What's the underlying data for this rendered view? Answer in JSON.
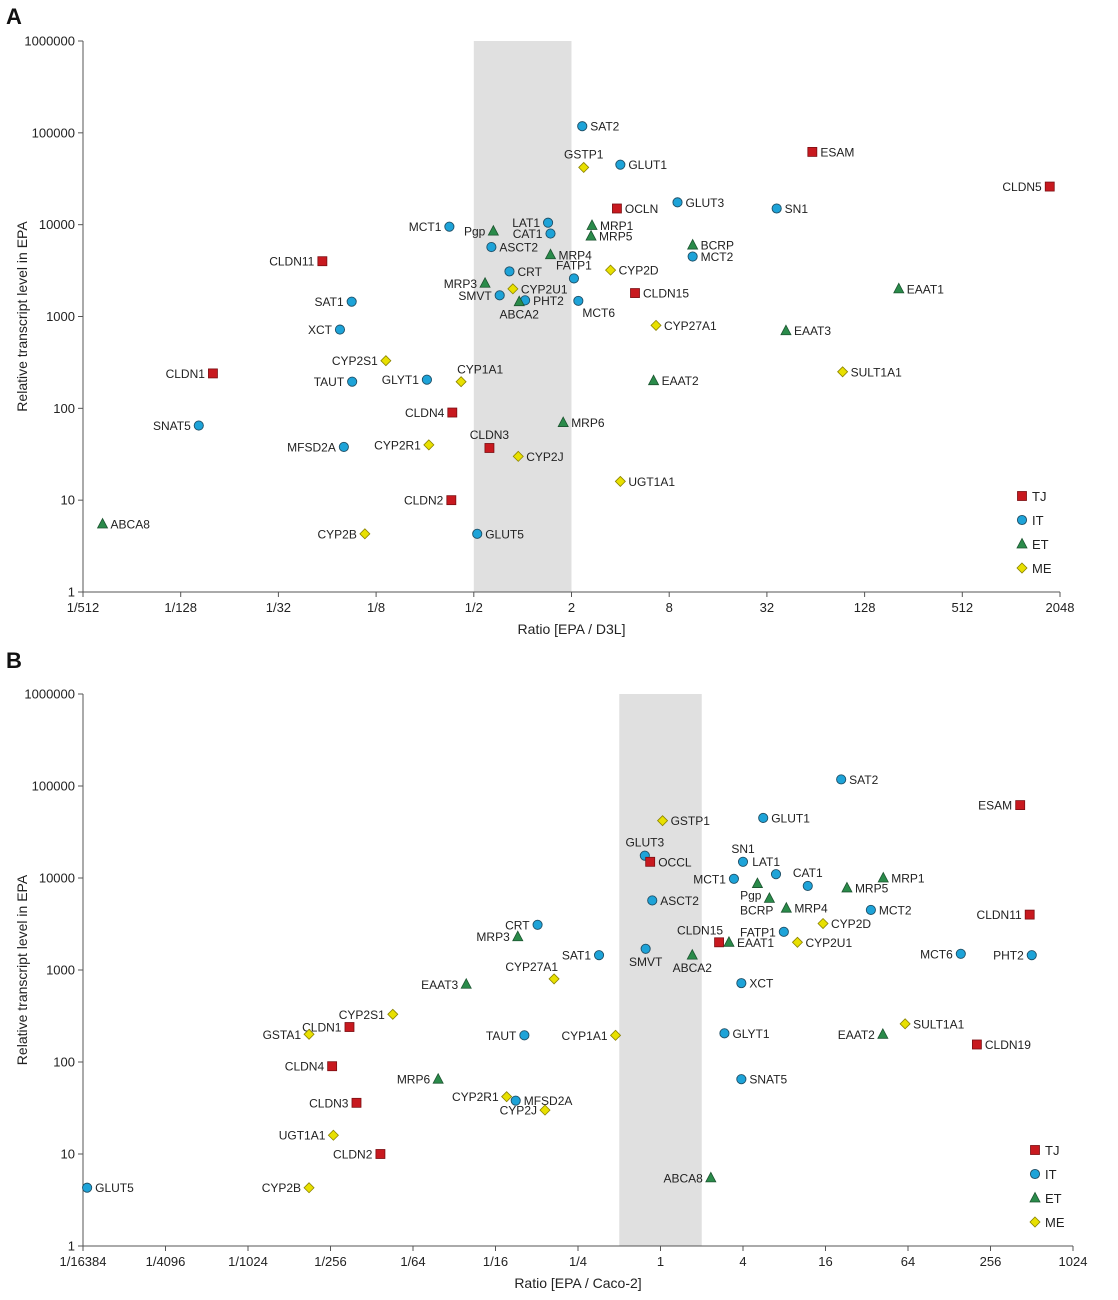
{
  "colors": {
    "TJ": "#c8191f",
    "IT": "#1da3d8",
    "ET": "#2a8b4a",
    "ME": "#e8e000",
    "band": "#e0e0e0"
  },
  "chart_data": [
    {
      "panel": "A",
      "type": "scatter",
      "xscale": "log2",
      "yscale": "log10",
      "xlabel": "Ratio [EPA / D3L]",
      "ylabel": "Relative transcript level in EPA",
      "xlim_log2": [
        -9,
        11
      ],
      "ylim": [
        1,
        1000000
      ],
      "xticks": [
        {
          "v": -9,
          "label": "1/512"
        },
        {
          "v": -7,
          "label": "1/128"
        },
        {
          "v": -5,
          "label": "1/32"
        },
        {
          "v": -3,
          "label": "1/8"
        },
        {
          "v": -1,
          "label": "1/2"
        },
        {
          "v": 1,
          "label": "2"
        },
        {
          "v": 3,
          "label": "8"
        },
        {
          "v": 5,
          "label": "32"
        },
        {
          "v": 7,
          "label": "128"
        },
        {
          "v": 9,
          "label": "512"
        },
        {
          "v": 11,
          "label": "2048"
        }
      ],
      "yticks": [
        {
          "v": 1,
          "label": "1"
        },
        {
          "v": 10,
          "label": "10"
        },
        {
          "v": 100,
          "label": "100"
        },
        {
          "v": 1000,
          "label": "1000"
        },
        {
          "v": 10000,
          "label": "10000"
        },
        {
          "v": 100000,
          "label": "100000"
        },
        {
          "v": 1000000,
          "label": "1000000"
        }
      ],
      "band_log2": [
        -1,
        1
      ],
      "legend": [
        {
          "cat": "TJ",
          "label": "TJ"
        },
        {
          "cat": "IT",
          "label": "IT"
        },
        {
          "cat": "ET",
          "label": "ET"
        },
        {
          "cat": "ME",
          "label": "ME"
        }
      ],
      "points": [
        {
          "label": "SAT2",
          "cat": "IT",
          "x": 1.22,
          "y": 118000,
          "pos": "right"
        },
        {
          "label": "GSTP1",
          "cat": "ME",
          "x": 1.25,
          "y": 42000,
          "pos": "above"
        },
        {
          "label": "GLUT1",
          "cat": "IT",
          "x": 2.0,
          "y": 45000,
          "pos": "right"
        },
        {
          "label": "ESAM",
          "cat": "TJ",
          "x": 5.93,
          "y": 62000,
          "pos": "right"
        },
        {
          "label": "CLDN5",
          "cat": "TJ",
          "x": 10.79,
          "y": 26000,
          "pos": "left"
        },
        {
          "label": "GLUT3",
          "cat": "IT",
          "x": 3.17,
          "y": 17500,
          "pos": "right"
        },
        {
          "label": "OCLN",
          "cat": "TJ",
          "x": 1.93,
          "y": 15000,
          "pos": "right"
        },
        {
          "label": "SN1",
          "cat": "IT",
          "x": 5.2,
          "y": 15000,
          "pos": "right"
        },
        {
          "label": "MCT1",
          "cat": "IT",
          "x": -1.5,
          "y": 9500,
          "pos": "left"
        },
        {
          "label": "Pgp",
          "cat": "ET",
          "x": -0.6,
          "y": 8500,
          "pos": "left"
        },
        {
          "label": "LAT1",
          "cat": "IT",
          "x": 0.52,
          "y": 10500,
          "pos": "left"
        },
        {
          "label": "CAT1",
          "cat": "IT",
          "x": 0.57,
          "y": 8000,
          "pos": "left"
        },
        {
          "label": "MRP1",
          "cat": "ET",
          "x": 1.42,
          "y": 9800,
          "pos": "right"
        },
        {
          "label": "MRP5",
          "cat": "ET",
          "x": 1.4,
          "y": 7500,
          "pos": "right"
        },
        {
          "label": "ASCT2",
          "cat": "IT",
          "x": -0.64,
          "y": 5700,
          "pos": "right"
        },
        {
          "label": "BCRP",
          "cat": "ET",
          "x": 3.48,
          "y": 6000,
          "pos": "right"
        },
        {
          "label": "MCT2",
          "cat": "IT",
          "x": 3.48,
          "y": 4500,
          "pos": "right"
        },
        {
          "label": "MRP4",
          "cat": "ET",
          "x": 0.57,
          "y": 4700,
          "pos": "right"
        },
        {
          "label": "CLDN11",
          "cat": "TJ",
          "x": -4.1,
          "y": 4000,
          "pos": "left"
        },
        {
          "label": "CRT",
          "cat": "IT",
          "x": -0.27,
          "y": 3100,
          "pos": "right"
        },
        {
          "label": "FATP1",
          "cat": "IT",
          "x": 1.05,
          "y": 2600,
          "pos": "above"
        },
        {
          "label": "CYP2D",
          "cat": "ME",
          "x": 1.8,
          "y": 3200,
          "pos": "right"
        },
        {
          "label": "MRP3",
          "cat": "ET",
          "x": -0.77,
          "y": 2300,
          "pos": "left"
        },
        {
          "label": "CYP2U1",
          "cat": "ME",
          "x": -0.2,
          "y": 2000,
          "pos": "right"
        },
        {
          "label": "EAAT1",
          "cat": "ET",
          "x": 7.7,
          "y": 2000,
          "pos": "right"
        },
        {
          "label": "SMVT",
          "cat": "IT",
          "x": -0.47,
          "y": 1700,
          "pos": "left"
        },
        {
          "label": "CLDN15",
          "cat": "TJ",
          "x": 2.3,
          "y": 1800,
          "pos": "right"
        },
        {
          "label": "PHT2",
          "cat": "IT",
          "x": 0.05,
          "y": 1500,
          "pos": "right"
        },
        {
          "label": "ABCA2",
          "cat": "ET",
          "x": -0.07,
          "y": 1450,
          "pos": "below"
        },
        {
          "label": "MCT6",
          "cat": "IT",
          "x": 1.14,
          "y": 1480,
          "pos": "belowright"
        },
        {
          "label": "SAT1",
          "cat": "IT",
          "x": -3.5,
          "y": 1450,
          "pos": "left"
        },
        {
          "label": "XCT",
          "cat": "IT",
          "x": -3.74,
          "y": 720,
          "pos": "left"
        },
        {
          "label": "CYP27A1",
          "cat": "ME",
          "x": 2.73,
          "y": 800,
          "pos": "right"
        },
        {
          "label": "EAAT3",
          "cat": "ET",
          "x": 5.39,
          "y": 700,
          "pos": "right"
        },
        {
          "label": "CYP2S1",
          "cat": "ME",
          "x": -2.8,
          "y": 330,
          "pos": "left"
        },
        {
          "label": "CLDN1",
          "cat": "TJ",
          "x": -6.34,
          "y": 240,
          "pos": "left"
        },
        {
          "label": "TAUT",
          "cat": "IT",
          "x": -3.49,
          "y": 195,
          "pos": "left"
        },
        {
          "label": "GLYT1",
          "cat": "IT",
          "x": -1.96,
          "y": 205,
          "pos": "left"
        },
        {
          "label": "CYP1A1",
          "cat": "ME",
          "x": -1.26,
          "y": 195,
          "pos": "aboveright"
        },
        {
          "label": "SULT1A1",
          "cat": "ME",
          "x": 6.55,
          "y": 250,
          "pos": "right"
        },
        {
          "label": "EAAT2",
          "cat": "ET",
          "x": 2.68,
          "y": 200,
          "pos": "right"
        },
        {
          "label": "CLDN4",
          "cat": "TJ",
          "x": -1.44,
          "y": 90,
          "pos": "left"
        },
        {
          "label": "SNAT5",
          "cat": "IT",
          "x": -6.63,
          "y": 65,
          "pos": "left"
        },
        {
          "label": "MRP6",
          "cat": "ET",
          "x": 0.83,
          "y": 70,
          "pos": "right"
        },
        {
          "label": "MFSD2A",
          "cat": "IT",
          "x": -3.66,
          "y": 38,
          "pos": "left"
        },
        {
          "label": "CYP2R1",
          "cat": "ME",
          "x": -1.92,
          "y": 40,
          "pos": "left"
        },
        {
          "label": "CLDN3",
          "cat": "TJ",
          "x": -0.68,
          "y": 37,
          "pos": "above"
        },
        {
          "label": "CYP2J",
          "cat": "ME",
          "x": -0.09,
          "y": 30,
          "pos": "right"
        },
        {
          "label": "UGT1A1",
          "cat": "ME",
          "x": 2.0,
          "y": 16,
          "pos": "right"
        },
        {
          "label": "CLDN2",
          "cat": "TJ",
          "x": -1.46,
          "y": 10,
          "pos": "left"
        },
        {
          "label": "ABCA8",
          "cat": "ET",
          "x": -8.6,
          "y": 5.5,
          "pos": "right"
        },
        {
          "label": "CYP2B",
          "cat": "ME",
          "x": -3.23,
          "y": 4.3,
          "pos": "left"
        },
        {
          "label": "GLUT5",
          "cat": "IT",
          "x": -0.93,
          "y": 4.3,
          "pos": "right"
        }
      ]
    },
    {
      "panel": "B",
      "type": "scatter",
      "xscale": "log2",
      "yscale": "log10",
      "xlabel": "Ratio [EPA / Caco-2]",
      "ylabel": "Relative transcript level in EPA",
      "xlim_log2": [
        -14,
        10
      ],
      "ylim": [
        1,
        1000000
      ],
      "xticks": [
        {
          "v": -14,
          "label": "1/16384"
        },
        {
          "v": -12,
          "label": "1/4096"
        },
        {
          "v": -10,
          "label": "1/1024"
        },
        {
          "v": -8,
          "label": "1/256"
        },
        {
          "v": -6,
          "label": "1/64"
        },
        {
          "v": -4,
          "label": "1/16"
        },
        {
          "v": -2,
          "label": "1/4"
        },
        {
          "v": 0,
          "label": "1"
        },
        {
          "v": 2,
          "label": "4"
        },
        {
          "v": 4,
          "label": "16"
        },
        {
          "v": 6,
          "label": "64"
        },
        {
          "v": 8,
          "label": "256"
        },
        {
          "v": 10,
          "label": "1024"
        }
      ],
      "yticks": [
        {
          "v": 1,
          "label": "1"
        },
        {
          "v": 10,
          "label": "10"
        },
        {
          "v": 100,
          "label": "100"
        },
        {
          "v": 1000,
          "label": "1000"
        },
        {
          "v": 10000,
          "label": "10000"
        },
        {
          "v": 100000,
          "label": "100000"
        },
        {
          "v": 1000000,
          "label": "1000000"
        }
      ],
      "band_log2": [
        -1,
        1
      ],
      "legend": [
        {
          "cat": "TJ",
          "label": "TJ"
        },
        {
          "cat": "IT",
          "label": "IT"
        },
        {
          "cat": "ET",
          "label": "ET"
        },
        {
          "cat": "ME",
          "label": "ME"
        }
      ],
      "points": [
        {
          "label": "SAT2",
          "cat": "IT",
          "x": 4.38,
          "y": 118000,
          "pos": "right"
        },
        {
          "label": "ESAM",
          "cat": "TJ",
          "x": 8.72,
          "y": 62000,
          "pos": "left"
        },
        {
          "label": "GLUT1",
          "cat": "IT",
          "x": 2.49,
          "y": 45000,
          "pos": "right"
        },
        {
          "label": "GSTP1",
          "cat": "ME",
          "x": 0.05,
          "y": 42000,
          "pos": "right"
        },
        {
          "label": "GLUT3",
          "cat": "IT",
          "x": -0.38,
          "y": 17500,
          "pos": "above"
        },
        {
          "label": "OCCL",
          "cat": "TJ",
          "x": -0.25,
          "y": 15000,
          "pos": "right"
        },
        {
          "label": "SN1",
          "cat": "IT",
          "x": 2.0,
          "y": 15000,
          "pos": "above"
        },
        {
          "label": "LAT1",
          "cat": "IT",
          "x": 2.8,
          "y": 11000,
          "pos": "aboveleft"
        },
        {
          "label": "MRP1",
          "cat": "ET",
          "x": 5.4,
          "y": 10000,
          "pos": "right"
        },
        {
          "label": "MCT1",
          "cat": "IT",
          "x": 1.78,
          "y": 9800,
          "pos": "left"
        },
        {
          "label": "CAT1",
          "cat": "IT",
          "x": 3.57,
          "y": 8200,
          "pos": "above"
        },
        {
          "label": "Pgp",
          "cat": "ET",
          "x": 2.35,
          "y": 8700,
          "pos": "belowleft"
        },
        {
          "label": "MRP5",
          "cat": "ET",
          "x": 4.52,
          "y": 7800,
          "pos": "right"
        },
        {
          "label": "BCRP",
          "cat": "ET",
          "x": 2.64,
          "y": 6000,
          "pos": "belowleft"
        },
        {
          "label": "ASCT2",
          "cat": "IT",
          "x": -0.2,
          "y": 5700,
          "pos": "right"
        },
        {
          "label": "MRP4",
          "cat": "ET",
          "x": 3.05,
          "y": 4700,
          "pos": "right"
        },
        {
          "label": "MCT2",
          "cat": "IT",
          "x": 5.1,
          "y": 4500,
          "pos": "right"
        },
        {
          "label": "CLDN11",
          "cat": "TJ",
          "x": 8.95,
          "y": 4000,
          "pos": "left"
        },
        {
          "label": "CYP2D",
          "cat": "ME",
          "x": 3.94,
          "y": 3200,
          "pos": "right"
        },
        {
          "label": "CRT",
          "cat": "IT",
          "x": -2.98,
          "y": 3100,
          "pos": "left"
        },
        {
          "label": "FATP1",
          "cat": "IT",
          "x": 2.99,
          "y": 2600,
          "pos": "left"
        },
        {
          "label": "MRP3",
          "cat": "ET",
          "x": -3.46,
          "y": 2300,
          "pos": "left"
        },
        {
          "label": "CLDN15",
          "cat": "TJ",
          "x": 1.42,
          "y": 2000,
          "pos": "aboveleft"
        },
        {
          "label": "EAAT1",
          "cat": "ET",
          "x": 1.66,
          "y": 2000,
          "pos": "right"
        },
        {
          "label": "CYP2U1",
          "cat": "ME",
          "x": 3.32,
          "y": 2000,
          "pos": "right"
        },
        {
          "label": "SMVT",
          "cat": "IT",
          "x": -0.36,
          "y": 1700,
          "pos": "below"
        },
        {
          "label": "ABCA2",
          "cat": "ET",
          "x": 0.77,
          "y": 1450,
          "pos": "below"
        },
        {
          "label": "SAT1",
          "cat": "IT",
          "x": -1.49,
          "y": 1450,
          "pos": "left"
        },
        {
          "label": "MCT6",
          "cat": "IT",
          "x": 7.28,
          "y": 1500,
          "pos": "left"
        },
        {
          "label": "PHT2",
          "cat": "IT",
          "x": 9.0,
          "y": 1450,
          "pos": "left"
        },
        {
          "label": "CYP27A1",
          "cat": "ME",
          "x": -2.58,
          "y": 800,
          "pos": "aboveleft"
        },
        {
          "label": "EAAT3",
          "cat": "ET",
          "x": -4.71,
          "y": 700,
          "pos": "left"
        },
        {
          "label": "XCT",
          "cat": "IT",
          "x": 1.96,
          "y": 720,
          "pos": "right"
        },
        {
          "label": "CYP2S1",
          "cat": "ME",
          "x": -6.49,
          "y": 330,
          "pos": "left"
        },
        {
          "label": "CLDN1",
          "cat": "TJ",
          "x": -7.54,
          "y": 240,
          "pos": "left"
        },
        {
          "label": "SULT1A1",
          "cat": "ME",
          "x": 5.93,
          "y": 260,
          "pos": "right"
        },
        {
          "label": "GSTA1",
          "cat": "ME",
          "x": -8.52,
          "y": 200,
          "pos": "left"
        },
        {
          "label": "TAUT",
          "cat": "IT",
          "x": -3.3,
          "y": 195,
          "pos": "left"
        },
        {
          "label": "CYP1A1",
          "cat": "ME",
          "x": -1.09,
          "y": 195,
          "pos": "left"
        },
        {
          "label": "GLYT1",
          "cat": "IT",
          "x": 1.55,
          "y": 205,
          "pos": "right"
        },
        {
          "label": "EAAT2",
          "cat": "ET",
          "x": 5.39,
          "y": 200,
          "pos": "left"
        },
        {
          "label": "CLDN19",
          "cat": "TJ",
          "x": 7.67,
          "y": 155,
          "pos": "right"
        },
        {
          "label": "CLDN4",
          "cat": "TJ",
          "x": -7.96,
          "y": 90,
          "pos": "left"
        },
        {
          "label": "MRP6",
          "cat": "ET",
          "x": -5.39,
          "y": 65,
          "pos": "left"
        },
        {
          "label": "SNAT5",
          "cat": "IT",
          "x": 1.96,
          "y": 65,
          "pos": "right"
        },
        {
          "label": "CYP2R1",
          "cat": "ME",
          "x": -3.73,
          "y": 42,
          "pos": "left"
        },
        {
          "label": "MFSD2A",
          "cat": "IT",
          "x": -3.51,
          "y": 38,
          "pos": "right"
        },
        {
          "label": "CLDN3",
          "cat": "TJ",
          "x": -7.37,
          "y": 36,
          "pos": "left"
        },
        {
          "label": "CYP2J",
          "cat": "ME",
          "x": -2.8,
          "y": 30,
          "pos": "left"
        },
        {
          "label": "UGT1A1",
          "cat": "ME",
          "x": -7.93,
          "y": 16,
          "pos": "left"
        },
        {
          "label": "CLDN2",
          "cat": "TJ",
          "x": -6.79,
          "y": 10,
          "pos": "left"
        },
        {
          "label": "GLUT5",
          "cat": "IT",
          "x": -13.9,
          "y": 4.3,
          "pos": "right"
        },
        {
          "label": "CYP2B",
          "cat": "ME",
          "x": -8.52,
          "y": 4.3,
          "pos": "left"
        },
        {
          "label": "ABCA8",
          "cat": "ET",
          "x": 1.22,
          "y": 5.5,
          "pos": "left"
        }
      ]
    }
  ]
}
